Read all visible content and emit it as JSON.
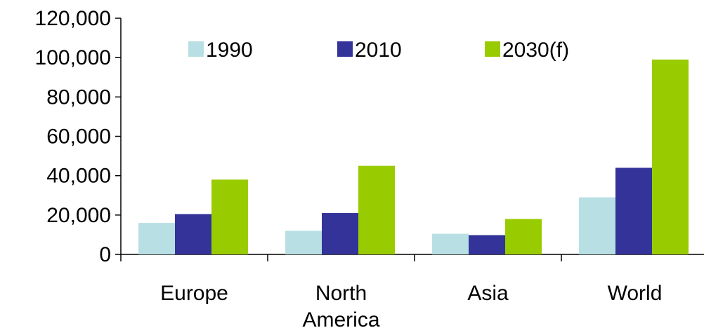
{
  "chart_data": {
    "type": "bar",
    "categories": [
      [
        "Europe"
      ],
      [
        "North",
        "America"
      ],
      [
        "Asia"
      ],
      [
        "World"
      ]
    ],
    "series": [
      {
        "name": "1990",
        "color": "#b8e0e4",
        "values": [
          16000,
          12000,
          10500,
          29000
        ]
      },
      {
        "name": "2010",
        "color": "#333399",
        "values": [
          20500,
          21000,
          9800,
          44000
        ]
      },
      {
        "name": "2030(f)",
        "color": "#99cc00",
        "values": [
          38000,
          45000,
          18000,
          99000
        ]
      }
    ],
    "ylim": [
      0,
      120000
    ],
    "yticks": [
      {
        "value": 0,
        "label": "0"
      },
      {
        "value": 20000,
        "label": "20,000"
      },
      {
        "value": 40000,
        "label": "40,000"
      },
      {
        "value": 60000,
        "label": "60,000"
      },
      {
        "value": 80000,
        "label": "80,000"
      },
      {
        "value": 100000,
        "label": "100,000"
      },
      {
        "value": 120000,
        "label": "120,000"
      }
    ],
    "grid": false,
    "legend_position": "top",
    "edge_fragment": ")"
  }
}
